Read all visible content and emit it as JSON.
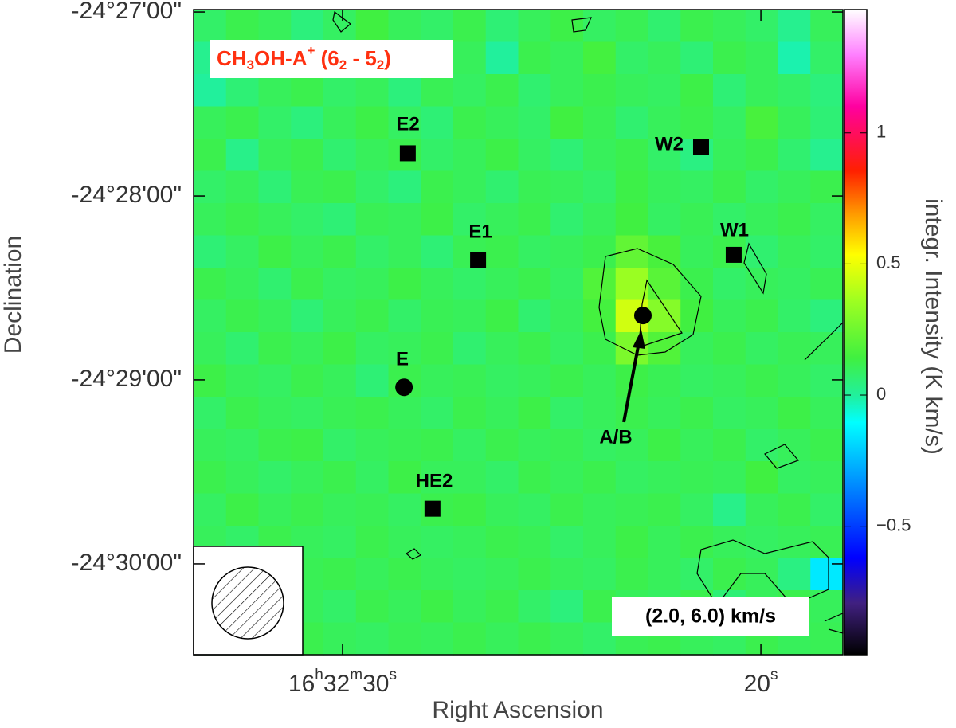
{
  "chart_data": {
    "type": "heatmap",
    "line_label": [
      "CH",
      "3",
      "OH-A",
      "+",
      " (6",
      "2",
      " - 5",
      "2",
      ")"
    ],
    "velocity_label": "(2.0, 6.0) km/s",
    "xlabel": "Right Ascension",
    "ylabel": "Declination",
    "colorbar_label": "integr. Intensity (K km/s)",
    "xlim": [
      33.56,
      18.04
    ],
    "ylim": [
      -24.50823,
      -24.44978
    ],
    "xticks": [
      {
        "value": 30,
        "label": [
          "16",
          "h",
          "32",
          "m",
          "30",
          "s"
        ]
      },
      {
        "value": 20,
        "label": [
          "20",
          "s"
        ]
      }
    ],
    "yticks": [
      {
        "value": -24.45,
        "label": "-24°27'00\""
      },
      {
        "value": -24.46667,
        "label": "-24°28'00\""
      },
      {
        "value": -24.48333,
        "label": "-24°29'00\""
      },
      {
        "value": -24.5,
        "label": "-24°30'00\""
      }
    ],
    "clim": [
      -0.99,
      1.47
    ],
    "cticks": [
      {
        "value": -0.5,
        "label": "−0.5"
      },
      0,
      0.5,
      1
    ],
    "z": [
      [
        0.08,
        0.12,
        0.1,
        0.05,
        0.09,
        0.14,
        0.1,
        0.08,
        0.12,
        0.06,
        0.1,
        0.13,
        0.09,
        0.11,
        0.07,
        0.12,
        0.1,
        0.08,
        0.02,
        0.1
      ],
      [
        0.02,
        0.1,
        0.12,
        0.08,
        0.06,
        0.11,
        0.09,
        0.13,
        0.1,
        0.0,
        0.12,
        0.1,
        0.15,
        0.08,
        0.1,
        0.06,
        0.12,
        0.1,
        -0.02,
        0.08
      ],
      [
        0.0,
        0.06,
        0.1,
        0.12,
        0.08,
        0.1,
        0.05,
        0.11,
        0.09,
        0.12,
        0.07,
        0.1,
        0.12,
        0.1,
        0.09,
        0.13,
        0.06,
        0.1,
        0.08,
        0.05
      ],
      [
        0.1,
        0.12,
        0.08,
        0.05,
        0.1,
        0.13,
        0.09,
        0.06,
        0.12,
        0.1,
        0.08,
        0.14,
        0.11,
        0.07,
        0.1,
        0.12,
        0.09,
        0.16,
        0.1,
        0.06
      ],
      [
        0.12,
        0.03,
        0.1,
        0.12,
        0.07,
        0.1,
        0.12,
        0.08,
        0.1,
        0.13,
        0.09,
        0.06,
        0.1,
        0.12,
        0.08,
        0.04,
        0.1,
        0.12,
        0.07,
        0.02
      ],
      [
        0.08,
        0.1,
        0.06,
        0.11,
        0.12,
        0.08,
        0.05,
        0.12,
        0.1,
        0.07,
        0.11,
        0.1,
        0.08,
        0.13,
        0.1,
        0.09,
        0.12,
        0.08,
        0.1,
        0.12
      ],
      [
        0.1,
        0.12,
        0.1,
        0.08,
        0.06,
        0.11,
        0.1,
        0.13,
        0.08,
        0.1,
        0.12,
        0.07,
        0.1,
        0.14,
        0.09,
        0.11,
        0.08,
        0.1,
        0.12,
        0.09
      ],
      [
        0.06,
        0.09,
        0.13,
        0.1,
        0.12,
        0.08,
        0.1,
        0.06,
        0.11,
        0.12,
        0.09,
        0.1,
        0.12,
        0.22,
        0.16,
        0.1,
        0.12,
        0.07,
        0.1,
        0.08
      ],
      [
        0.12,
        0.1,
        0.07,
        0.12,
        0.09,
        0.1,
        0.13,
        0.1,
        0.08,
        0.1,
        0.12,
        0.09,
        0.18,
        0.35,
        0.2,
        0.12,
        0.08,
        0.1,
        0.09,
        0.11
      ],
      [
        0.09,
        0.12,
        0.1,
        0.06,
        0.1,
        0.12,
        0.08,
        0.11,
        0.1,
        0.13,
        0.07,
        0.1,
        0.15,
        0.45,
        0.3,
        0.14,
        0.1,
        0.12,
        0.08,
        0.05
      ],
      [
        0.1,
        0.07,
        0.12,
        0.1,
        0.13,
        0.09,
        0.1,
        0.12,
        0.07,
        0.1,
        0.12,
        0.09,
        0.12,
        0.28,
        0.18,
        0.1,
        0.12,
        0.09,
        0.11,
        0.1
      ],
      [
        0.13,
        0.1,
        0.09,
        0.12,
        0.1,
        0.06,
        0.12,
        0.1,
        0.11,
        0.09,
        0.1,
        0.12,
        0.1,
        0.13,
        0.11,
        0.09,
        0.1,
        0.12,
        0.1,
        0.08
      ],
      [
        0.08,
        0.12,
        0.1,
        0.09,
        0.11,
        0.12,
        0.1,
        0.08,
        0.12,
        0.1,
        0.13,
        0.08,
        0.1,
        0.12,
        0.1,
        0.12,
        0.09,
        0.1,
        0.13,
        0.1
      ],
      [
        0.1,
        0.09,
        0.12,
        0.13,
        0.08,
        0.1,
        0.11,
        0.12,
        0.09,
        0.12,
        0.1,
        0.11,
        0.09,
        0.1,
        0.13,
        0.1,
        0.12,
        0.08,
        0.1,
        0.12
      ],
      [
        0.12,
        0.1,
        0.08,
        0.1,
        0.12,
        0.09,
        0.13,
        0.1,
        0.1,
        0.08,
        0.12,
        0.1,
        0.12,
        0.09,
        0.1,
        0.11,
        0.1,
        0.14,
        0.09,
        0.1
      ],
      [
        0.09,
        0.13,
        0.1,
        0.12,
        0.1,
        0.11,
        0.09,
        0.12,
        0.13,
        0.1,
        0.09,
        0.12,
        0.1,
        0.11,
        0.12,
        0.09,
        0.03,
        0.1,
        0.12,
        0.08
      ],
      [
        0.1,
        0.08,
        0.12,
        0.1,
        0.09,
        0.12,
        0.1,
        0.09,
        0.1,
        0.12,
        0.11,
        0.08,
        0.1,
        0.13,
        0.1,
        0.12,
        0.1,
        0.09,
        0.1,
        0.11
      ],
      [
        0.12,
        0.1,
        0.09,
        0.11,
        0.12,
        0.1,
        0.12,
        0.1,
        0.09,
        0.1,
        0.12,
        0.1,
        0.09,
        0.12,
        0.1,
        0.08,
        0.12,
        0.1,
        0.04,
        -0.15
      ],
      [
        0.09,
        0.11,
        0.12,
        0.1,
        0.08,
        0.12,
        0.1,
        0.13,
        0.1,
        0.12,
        0.08,
        0.05,
        0.12,
        0.1,
        0.09,
        0.12,
        0.06,
        0.1,
        0.12,
        0.1
      ],
      [
        0.11,
        0.1,
        0.08,
        0.12,
        0.1,
        0.09,
        0.11,
        0.1,
        0.12,
        0.1,
        0.12,
        0.1,
        0.08,
        0.11,
        0.12,
        0.1,
        0.09,
        0.12,
        0.1,
        0.11
      ]
    ],
    "sources": {
      "names": [
        "E2",
        "E1",
        "W2",
        "W1",
        "E",
        "A/B",
        "HE2"
      ],
      "x": [
        28.44,
        26.76,
        21.43,
        20.65,
        28.53,
        22.82,
        27.85
      ],
      "y": [
        -24.4628,
        -24.4725,
        -24.4622,
        -24.472,
        -24.484,
        -24.4775,
        -24.495
      ],
      "markers": [
        "square",
        "square",
        "square",
        "square",
        "circle",
        "circle",
        "square"
      ],
      "color": "#000000"
    }
  }
}
